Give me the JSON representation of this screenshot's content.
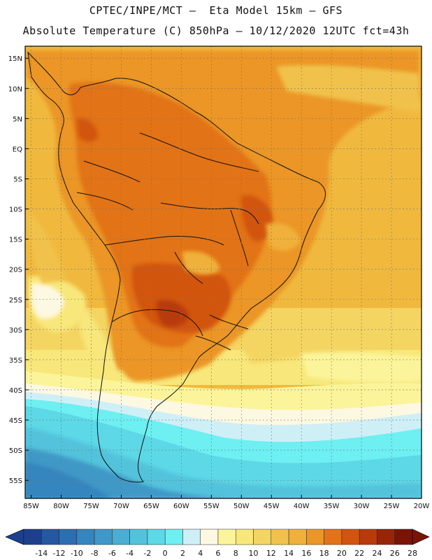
{
  "header": {
    "line1": "CPTEC/INPE/MCT –  Eta Model 15km – GFS",
    "line2": "Absolute Temperature (C) 850hPa – 10/12/2020 12UTC fct=43h"
  },
  "map": {
    "lat_labels": [
      "15N",
      "10N",
      "5N",
      "EQ",
      "5S",
      "10S",
      "15S",
      "20S",
      "25S",
      "30S",
      "35S",
      "40S",
      "45S",
      "50S",
      "55S"
    ],
    "lat_values": [
      15,
      10,
      5,
      0,
      -5,
      -10,
      -15,
      -20,
      -25,
      -30,
      -35,
      -40,
      -45,
      -50,
      -55
    ],
    "lon_labels": [
      "85W",
      "80W",
      "75W",
      "70W",
      "65W",
      "60W",
      "55W",
      "50W",
      "45W",
      "40W",
      "35W",
      "30W",
      "25W",
      "20W"
    ],
    "lon_values": [
      -85,
      -80,
      -75,
      -70,
      -65,
      -60,
      -55,
      -50,
      -45,
      -40,
      -35,
      -30,
      -25,
      -20
    ],
    "lon_range": [
      -86,
      -20
    ],
    "lat_range": [
      -58,
      17
    ]
  },
  "colorbar": {
    "labels": [
      "-14",
      "-12",
      "-10",
      "-8",
      "-6",
      "-4",
      "-2",
      "0",
      "2",
      "4",
      "6",
      "8",
      "10",
      "12",
      "14",
      "16",
      "18",
      "20",
      "22",
      "24",
      "26",
      "28"
    ],
    "colors": [
      "#1c3f8e",
      "#2458a0",
      "#2c6fb0",
      "#3585be",
      "#3f98c7",
      "#49aed2",
      "#53c3dc",
      "#5dd8e6",
      "#6eeff2",
      "#cfeff7",
      "#fdf8e1",
      "#fbf49a",
      "#f8e77a",
      "#f4d562",
      "#f1c24b",
      "#efb13a",
      "#eb9628",
      "#e27319",
      "#d25410",
      "#b83a0c",
      "#982508",
      "#7a1406"
    ],
    "end_low": "#1c3f8e",
    "end_high": "#7a1406"
  }
}
